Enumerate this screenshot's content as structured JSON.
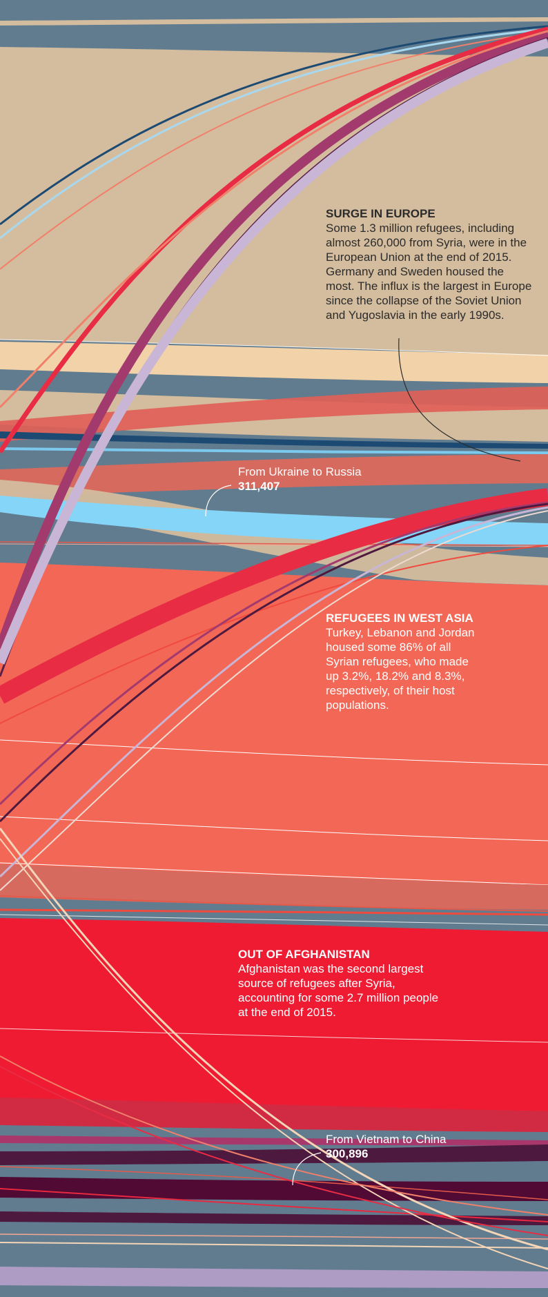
{
  "annotations": {
    "europe": {
      "title": "SURGE IN EUROPE",
      "body": "Some 1.3 million refugees, including almost 260,000 from Syria, were in the European Union at the end of 2015. Germany and Sweden housed the most. The influx is the largest in Europe since the collapse of the Soviet Union and Yugoslavia in the early 1990s."
    },
    "west_asia": {
      "title": "REFUGEES IN WEST ASIA",
      "body": "Turkey, Lebanon and Jordan housed some 86% of all Syrian refugees, who made up 3.2%, 18.2% and 8.3%, respectively, of their host populations."
    },
    "afghanistan": {
      "title": "OUT OF AFGHANISTAN",
      "body": "Afghanistan was the second largest source of refugees after Syria, accounting for some 2.7 million people at the end of 2015."
    }
  },
  "flow_labels": {
    "ukraine_russia": {
      "label": "From Ukraine to Russia",
      "value": "311,407"
    },
    "vietnam_china": {
      "label": "From Vietnam to China",
      "value": "300,896"
    }
  },
  "colors": {
    "background": "#627c8f",
    "europe_band": "#d4bd9e",
    "europe_light_band": "#f2d2a8",
    "west_asia_band": "#f26756",
    "afghanistan_band": "#ee1b33",
    "ukraine_russia_flow": "#85d5f8",
    "syria_flow": "#e82c43",
    "vietnam_china_flow": "#4e193f",
    "lavender_flow": "#c9b6d6",
    "dark_text": "#2b2b2b",
    "light_text": "#ffffff"
  }
}
